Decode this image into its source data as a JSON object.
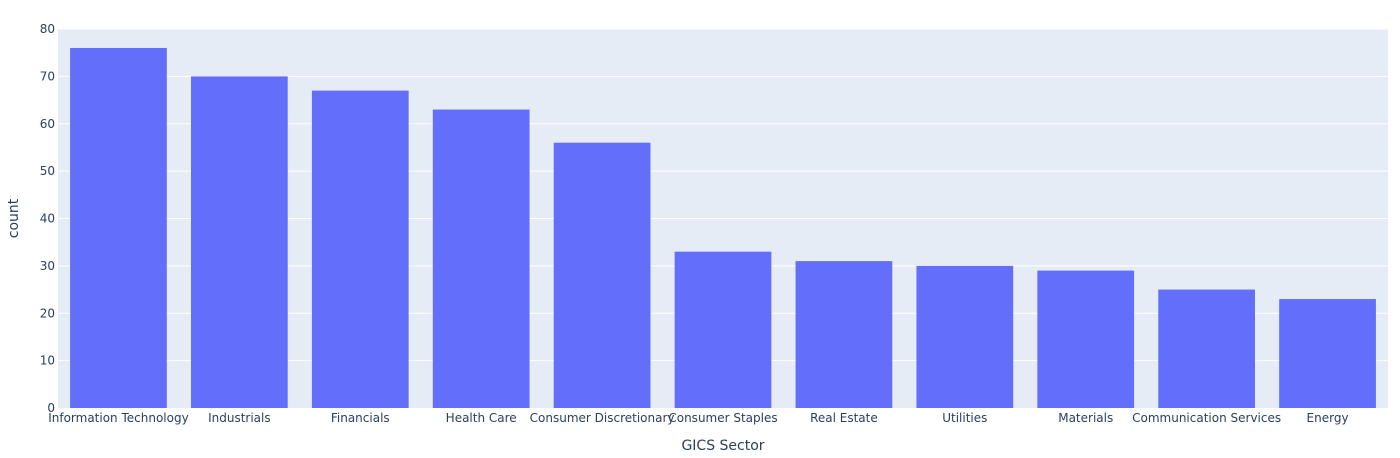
{
  "chart_data": {
    "type": "bar",
    "categories": [
      "Information Technology",
      "Industrials",
      "Financials",
      "Health Care",
      "Consumer Discretionary",
      "Consumer Staples",
      "Real Estate",
      "Utilities",
      "Materials",
      "Communication Services",
      "Energy"
    ],
    "values": [
      76,
      70,
      67,
      63,
      56,
      33,
      31,
      30,
      29,
      25,
      23
    ],
    "xlabel": "GICS Sector",
    "ylabel": "count",
    "ylim": [
      0,
      80
    ],
    "yticks": [
      0,
      10,
      20,
      30,
      40,
      50,
      60,
      70,
      80
    ],
    "grid": true,
    "colors": {
      "bar": "#636efa",
      "plot_background": "#e5ecf6",
      "grid": "#ffffff",
      "text": "#2a3f5f"
    }
  }
}
